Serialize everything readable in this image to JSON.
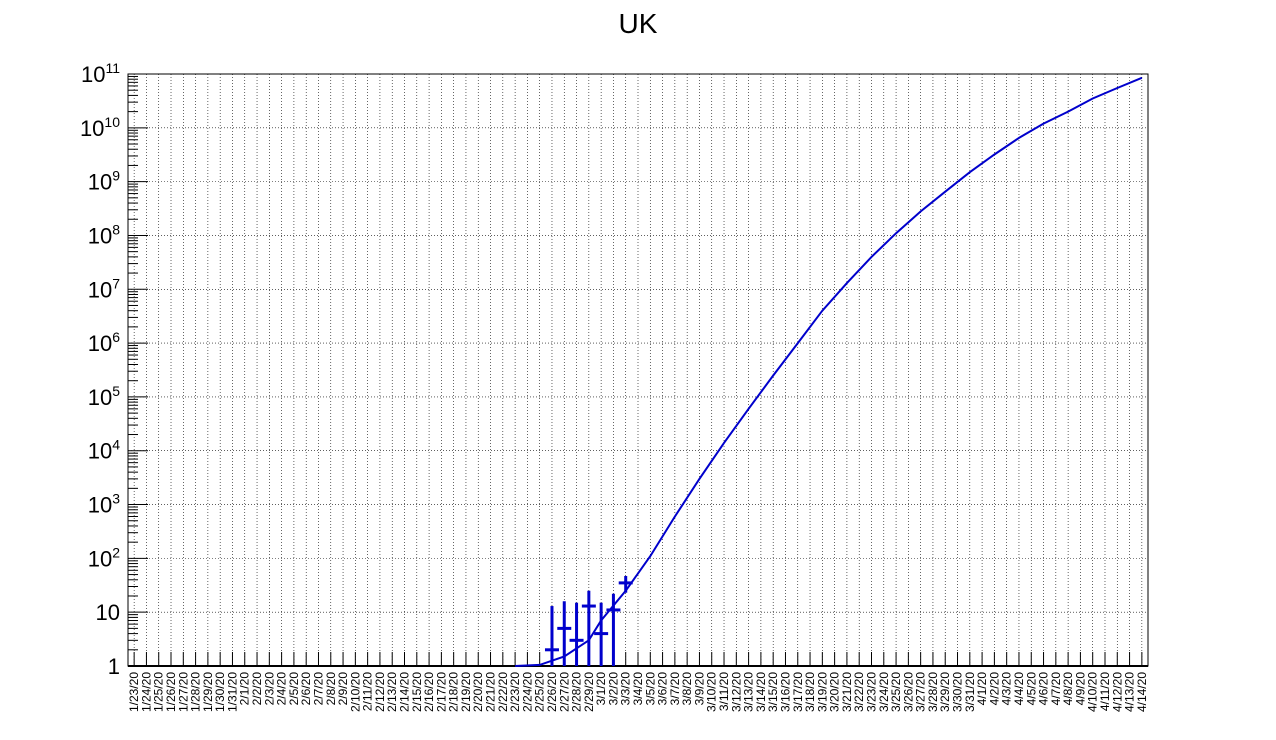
{
  "chart_data": {
    "type": "scatter",
    "title": "UK",
    "xlabel": "",
    "ylabel": "",
    "x_tick_labels": [
      "1/23/20",
      "1/24/20",
      "1/25/20",
      "1/26/20",
      "1/27/20",
      "1/28/20",
      "1/29/20",
      "1/30/20",
      "1/31/20",
      "2/1/20",
      "2/2/20",
      "2/3/20",
      "2/4/20",
      "2/5/20",
      "2/6/20",
      "2/7/20",
      "2/8/20",
      "2/9/20",
      "2/10/20",
      "2/11/20",
      "2/12/20",
      "2/13/20",
      "2/14/20",
      "2/15/20",
      "2/16/20",
      "2/17/20",
      "2/18/20",
      "2/19/20",
      "2/20/20",
      "2/21/20",
      "2/22/20",
      "2/23/20",
      "2/24/20",
      "2/25/20",
      "2/26/20",
      "2/27/20",
      "2/28/20",
      "2/29/20",
      "3/1/20",
      "3/2/20",
      "3/3/20",
      "3/4/20",
      "3/5/20",
      "3/6/20",
      "3/7/20",
      "3/8/20",
      "3/9/20",
      "3/10/20",
      "3/11/20",
      "3/12/20",
      "3/13/20",
      "3/14/20",
      "3/15/20",
      "3/16/20",
      "3/17/20",
      "3/18/20",
      "3/19/20",
      "3/20/20",
      "3/21/20",
      "3/22/20",
      "3/23/20",
      "3/24/20",
      "3/25/20",
      "3/26/20",
      "3/27/20",
      "3/28/20",
      "3/29/20",
      "3/30/20",
      "3/31/20",
      "4/1/20",
      "4/2/20",
      "4/3/20",
      "4/4/20",
      "4/5/20",
      "4/6/20",
      "4/7/20",
      "4/8/20",
      "4/9/20",
      "4/10/20",
      "4/11/20",
      "4/12/20",
      "4/13/20",
      "4/14/20"
    ],
    "y_scale": "log",
    "ylim": [
      1,
      100000000000
    ],
    "y_tick_labels": [
      "1",
      "10",
      "10^2",
      "10^3",
      "10^4",
      "10^5",
      "10^6",
      "10^7",
      "10^8",
      "10^9",
      "10^10",
      "10^11"
    ],
    "grid": true,
    "colors": {
      "series": "#0000cc",
      "fit": "#0000cc"
    },
    "series": [
      {
        "style": "points-with-errorbars",
        "points": [
          {
            "x": "2/26/20",
            "y": 2,
            "y_low": 1,
            "y_high": 13
          },
          {
            "x": "2/27/20",
            "y": 5,
            "y_low": 1,
            "y_high": 16
          },
          {
            "x": "2/28/20",
            "y": 3,
            "y_low": 1,
            "y_high": 15
          },
          {
            "x": "2/29/20",
            "y": 13,
            "y_low": 1,
            "y_high": 25
          },
          {
            "x": "3/1/20",
            "y": 4,
            "y_low": 1,
            "y_high": 15
          },
          {
            "x": "3/2/20",
            "y": 11,
            "y_low": 1,
            "y_high": 22
          },
          {
            "x": "3/3/20",
            "y": 35,
            "y_low": 23,
            "y_high": 47
          }
        ]
      },
      {
        "style": "line",
        "points": [
          {
            "x": "2/23/20",
            "y": 1
          },
          {
            "x": "2/25/20",
            "y": 1.05
          },
          {
            "x": "2/27/20",
            "y": 1.5
          },
          {
            "x": "2/29/20",
            "y": 3
          },
          {
            "x": "3/1/20",
            "y": 7
          },
          {
            "x": "3/3/20",
            "y": 25
          },
          {
            "x": "3/5/20",
            "y": 110
          },
          {
            "x": "3/7/20",
            "y": 600
          },
          {
            "x": "3/9/20",
            "y": 3000
          },
          {
            "x": "3/11/20",
            "y": 14000
          },
          {
            "x": "3/13/20",
            "y": 60000
          },
          {
            "x": "3/15/20",
            "y": 250000
          },
          {
            "x": "3/17/20",
            "y": 1000000
          },
          {
            "x": "3/19/20",
            "y": 4000000
          },
          {
            "x": "3/21/20",
            "y": 13000000
          },
          {
            "x": "3/23/20",
            "y": 40000000
          },
          {
            "x": "3/25/20",
            "y": 110000000
          },
          {
            "x": "3/27/20",
            "y": 280000000
          },
          {
            "x": "3/29/20",
            "y": 650000000
          },
          {
            "x": "3/31/20",
            "y": 1500000000
          },
          {
            "x": "4/2/20",
            "y": 3200000000
          },
          {
            "x": "4/4/20",
            "y": 6500000000
          },
          {
            "x": "4/6/20",
            "y": 12000000000
          },
          {
            "x": "4/8/20",
            "y": 20000000000
          },
          {
            "x": "4/10/20",
            "y": 35000000000
          },
          {
            "x": "4/12/20",
            "y": 55000000000
          },
          {
            "x": "4/14/20",
            "y": 85000000000
          }
        ]
      }
    ]
  }
}
